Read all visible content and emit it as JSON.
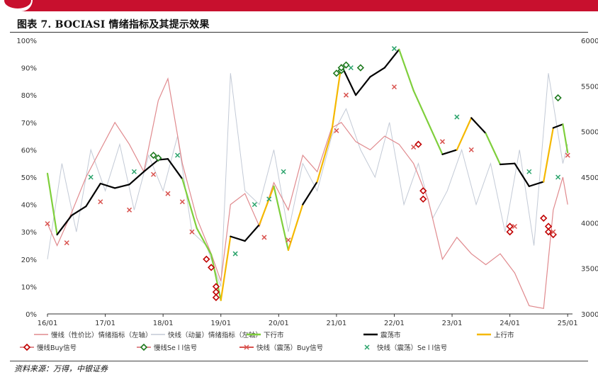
{
  "header": {
    "title": "图表 7. BOCIASI 情绪指标及其提示效果"
  },
  "footer": {
    "source": "资料来源：万得，中银证券"
  },
  "colors": {
    "brand_red": "#c8102e",
    "slow_line": "#e08a8e",
    "fast_line": "#c3cad6",
    "down_market": "#7fcf3c",
    "range_market": "#000000",
    "up_market": "#f5b800",
    "slow_buy": "#c00000",
    "slow_sell": "#1f7a1f",
    "fast_buy": "#d9534f",
    "fast_sell": "#2aa36b"
  },
  "chart_data": {
    "type": "line",
    "x_tick_labels": [
      "16/01",
      "17/01",
      "18/01",
      "19/01",
      "20/01",
      "21/01",
      "22/01",
      "23/01",
      "24/01",
      "25/01"
    ],
    "x_range": [
      "2016-01",
      "2025-02"
    ],
    "left_axis": {
      "ticks": [
        "0%",
        "10%",
        "20%",
        "30%",
        "40%",
        "50%",
        "60%",
        "70%",
        "80%",
        "90%",
        "100%"
      ],
      "ylim": [
        0,
        100
      ]
    },
    "right_axis": {
      "ticks": [
        "3000",
        "3500",
        "4000",
        "4500",
        "5000",
        "5500",
        "6000"
      ],
      "ylim": [
        3000,
        6000
      ]
    },
    "legend": [
      {
        "label": "慢线（性价比）情绪指标（左轴）",
        "kind": "line",
        "color_key": "slow_line"
      },
      {
        "label": "快线（动量）情绪指标（左轴）",
        "kind": "line",
        "color_key": "fast_line"
      },
      {
        "label": "下行市",
        "kind": "line",
        "color_key": "down_market"
      },
      {
        "label": "震荡市",
        "kind": "line",
        "color_key": "range_market"
      },
      {
        "label": "上行市",
        "kind": "line",
        "color_key": "up_market"
      },
      {
        "label": "慢线Buy信号",
        "kind": "diamond",
        "color_key": "slow_buy"
      },
      {
        "label": "慢线Se l l信号",
        "kind": "diamond",
        "color_key": "slow_sell"
      },
      {
        "label": "快线（震荡）Buy信号",
        "kind": "x",
        "color_key": "fast_buy"
      },
      {
        "label": "快线（震荡）Se l l信号",
        "kind": "x",
        "color_key": "fast_sell"
      }
    ],
    "series": [
      {
        "key": "slow_line",
        "axis": "left",
        "x": [
          "2016-01",
          "2016-03",
          "2016-06",
          "2016-09",
          "2016-12",
          "2017-03",
          "2017-06",
          "2017-09",
          "2017-12",
          "2018-02",
          "2018-05",
          "2018-08",
          "2018-11",
          "2019-01",
          "2019-03",
          "2019-06",
          "2019-09",
          "2019-12",
          "2020-03",
          "2020-06",
          "2020-09",
          "2020-12",
          "2021-02",
          "2021-05",
          "2021-08",
          "2021-11",
          "2022-02",
          "2022-05",
          "2022-08",
          "2022-11",
          "2023-02",
          "2023-05",
          "2023-08",
          "2023-11",
          "2024-02",
          "2024-05",
          "2024-08",
          "2024-10",
          "2024-12",
          "2025-01"
        ],
        "y": [
          33,
          25,
          37,
          50,
          60,
          70,
          62,
          52,
          78,
          86,
          55,
          35,
          22,
          12,
          40,
          44,
          32,
          48,
          38,
          58,
          52,
          68,
          70,
          63,
          60,
          65,
          62,
          55,
          42,
          20,
          28,
          22,
          18,
          22,
          15,
          3,
          2,
          38,
          50,
          40
        ]
      },
      {
        "key": "fast_line",
        "axis": "left",
        "x": [
          "2016-01",
          "2016-04",
          "2016-07",
          "2016-10",
          "2017-01",
          "2017-04",
          "2017-07",
          "2017-10",
          "2018-01",
          "2018-04",
          "2018-07",
          "2018-10",
          "2019-01",
          "2019-03",
          "2019-06",
          "2019-09",
          "2019-12",
          "2020-03",
          "2020-06",
          "2020-09",
          "2020-12",
          "2021-03",
          "2021-06",
          "2021-09",
          "2021-12",
          "2022-03",
          "2022-06",
          "2022-09",
          "2022-12",
          "2023-03",
          "2023-06",
          "2023-09",
          "2023-12",
          "2024-03",
          "2024-06",
          "2024-09",
          "2024-12",
          "2025-01"
        ],
        "y": [
          20,
          55,
          30,
          60,
          45,
          62,
          38,
          58,
          45,
          65,
          30,
          25,
          10,
          88,
          45,
          40,
          60,
          30,
          55,
          45,
          65,
          75,
          60,
          50,
          70,
          40,
          55,
          35,
          45,
          60,
          40,
          55,
          30,
          60,
          25,
          88,
          55,
          62
        ]
      },
      {
        "key": "index_line",
        "axis": "right",
        "x": [
          "2016-01",
          "2016-03",
          "2016-06",
          "2016-09",
          "2016-12",
          "2017-03",
          "2017-06",
          "2017-09",
          "2017-12",
          "2018-02",
          "2018-05",
          "2018-08",
          "2018-11",
          "2019-01",
          "2019-03",
          "2019-06",
          "2019-09",
          "2019-12",
          "2020-03",
          "2020-06",
          "2020-09",
          "2020-12",
          "2021-02",
          "2021-05",
          "2021-08",
          "2021-11",
          "2022-02",
          "2022-05",
          "2022-08",
          "2022-11",
          "2023-02",
          "2023-05",
          "2023-08",
          "2023-11",
          "2024-02",
          "2024-05",
          "2024-08",
          "2024-10",
          "2024-12",
          "2025-01"
        ],
        "y": [
          4540,
          3870,
          4080,
          4180,
          4430,
          4380,
          4420,
          4560,
          4690,
          4700,
          4480,
          3940,
          3650,
          3150,
          3850,
          3800,
          3980,
          4400,
          3700,
          4200,
          4450,
          5000,
          5730,
          5400,
          5600,
          5700,
          5900,
          5450,
          5100,
          4750,
          4800,
          5150,
          4980,
          4640,
          4650,
          4400,
          4450,
          5040,
          5080,
          4770
        ]
      },
      {
        "key": "slow_buy",
        "axis": "left",
        "kind": "diamond",
        "x": [
          "2018-10",
          "2018-11",
          "2018-12",
          "2018-12",
          "2018-12",
          "2022-06",
          "2022-07",
          "2022-07",
          "2024-01",
          "2024-01",
          "2024-08",
          "2024-09",
          "2024-09",
          "2024-10"
        ],
        "y": [
          20,
          17,
          10,
          8,
          6,
          62,
          45,
          42,
          32,
          30,
          35,
          32,
          30,
          29
        ]
      },
      {
        "key": "slow_sell",
        "axis": "left",
        "kind": "diamond",
        "x": [
          "2017-11",
          "2017-12",
          "2021-01",
          "2021-02",
          "2021-02",
          "2021-03",
          "2021-06",
          "2024-11"
        ],
        "y": [
          58,
          57,
          88,
          89,
          90,
          91,
          90,
          79
        ]
      },
      {
        "key": "fast_buy",
        "axis": "left",
        "kind": "x",
        "x": [
          "2016-01",
          "2016-05",
          "2016-12",
          "2017-06",
          "2017-11",
          "2018-02",
          "2018-05",
          "2018-07",
          "2019-10",
          "2020-03",
          "2021-01",
          "2021-03",
          "2022-01",
          "2022-05",
          "2022-11",
          "2023-05",
          "2024-02",
          "2024-10",
          "2025-01"
        ],
        "y": [
          33,
          26,
          41,
          38,
          51,
          44,
          41,
          30,
          28,
          27,
          67,
          80,
          83,
          61,
          63,
          60,
          32,
          30,
          58
        ]
      },
      {
        "key": "fast_sell",
        "axis": "left",
        "kind": "x",
        "x": [
          "2016-10",
          "2017-07",
          "2018-04",
          "2019-04",
          "2019-08",
          "2019-11",
          "2020-02",
          "2021-04",
          "2022-01",
          "2023-02",
          "2024-05",
          "2024-11"
        ],
        "y": [
          50,
          52,
          58,
          22,
          40,
          42,
          52,
          90,
          97,
          72,
          52,
          50
        ]
      }
    ]
  }
}
